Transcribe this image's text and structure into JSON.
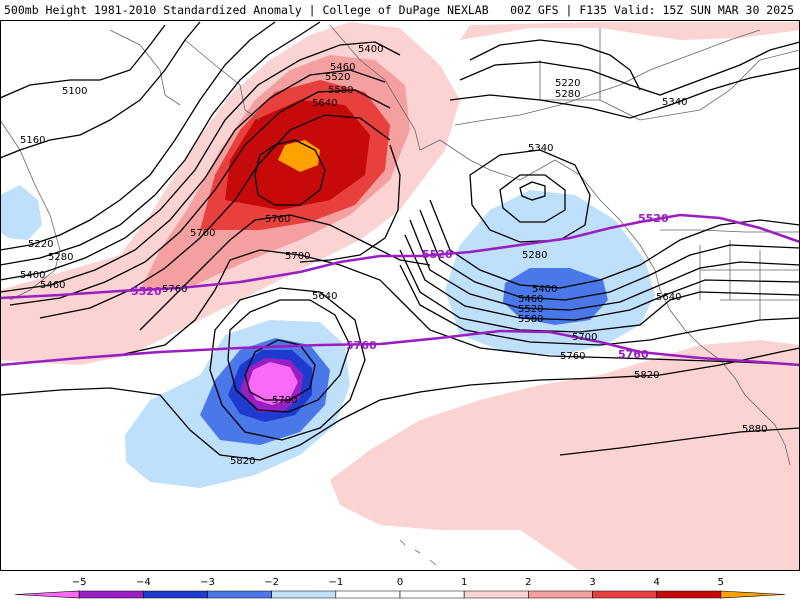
{
  "header": {
    "title_left": "500mb Height 1981-2010 Standardized Anomaly | College of DuPage NEXLAB",
    "title_right": "00Z GFS | F135 Valid: 15Z SUN MAR 30 2025"
  },
  "colors": {
    "m5": "#f96af9",
    "m4": "#9a1fc2",
    "m3": "#1f3bcf",
    "m2": "#4a78e8",
    "m1": "#bfe0fb",
    "p1": "#fcd3d3",
    "p2": "#f5a0a0",
    "p3": "#e8413d",
    "p4": "#c60a0a",
    "p5": "#ffa200",
    "purple_contour": "#9a1fc2"
  },
  "contour_labels": [
    {
      "text": "5400"
    },
    {
      "text": "5460"
    },
    {
      "text": "5520"
    },
    {
      "text": "5580"
    },
    {
      "text": "5640"
    },
    {
      "text": "5760"
    },
    {
      "text": "5700"
    },
    {
      "text": "5100"
    },
    {
      "text": "5160"
    },
    {
      "text": "5220"
    },
    {
      "text": "5280"
    },
    {
      "text": "5400"
    },
    {
      "text": "5460"
    },
    {
      "text": "5700"
    },
    {
      "text": "5760"
    },
    {
      "text": "5640"
    },
    {
      "text": "5700"
    },
    {
      "text": "5820"
    },
    {
      "text": "5340"
    },
    {
      "text": "5280"
    },
    {
      "text": "5400"
    },
    {
      "text": "5460"
    },
    {
      "text": "5520"
    },
    {
      "text": "5580"
    },
    {
      "text": "5640"
    },
    {
      "text": "5700"
    },
    {
      "text": "5760"
    },
    {
      "text": "5820"
    },
    {
      "text": "5880"
    },
    {
      "text": "5220"
    },
    {
      "text": "5280"
    },
    {
      "text": "5340"
    }
  ],
  "highlight_labels": [
    {
      "text": "5520"
    },
    {
      "text": "5520"
    },
    {
      "text": "5520"
    },
    {
      "text": "5760"
    },
    {
      "text": "5760"
    }
  ],
  "colorbar": {
    "ticks": [
      "−5",
      "−4",
      "−3",
      "−2",
      "−1",
      "0",
      "1",
      "2",
      "3",
      "4",
      "5"
    ]
  }
}
